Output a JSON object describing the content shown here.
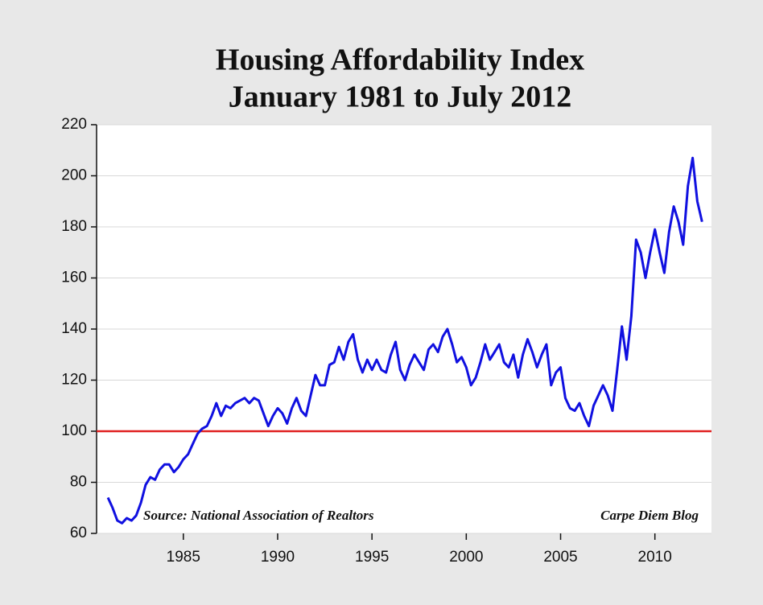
{
  "chart_data": {
    "type": "line",
    "title": "Housing Affordability Index",
    "subtitle": "January 1981 to July 2012",
    "annotations": [
      "Source: National Association of Realtors",
      "Carpe Diem Blog"
    ],
    "x": [
      1981.0,
      1981.25,
      1981.5,
      1981.75,
      1982.0,
      1982.25,
      1982.5,
      1982.75,
      1983.0,
      1983.25,
      1983.5,
      1983.75,
      1984.0,
      1984.25,
      1984.5,
      1984.75,
      1985.0,
      1985.25,
      1985.5,
      1985.75,
      1986.0,
      1986.25,
      1986.5,
      1986.75,
      1987.0,
      1987.25,
      1987.5,
      1987.75,
      1988.0,
      1988.25,
      1988.5,
      1988.75,
      1989.0,
      1989.25,
      1989.5,
      1989.75,
      1990.0,
      1990.25,
      1990.5,
      1990.75,
      1991.0,
      1991.25,
      1991.5,
      1991.75,
      1992.0,
      1992.25,
      1992.5,
      1992.75,
      1993.0,
      1993.25,
      1993.5,
      1993.75,
      1994.0,
      1994.25,
      1994.5,
      1994.75,
      1995.0,
      1995.25,
      1995.5,
      1995.75,
      1996.0,
      1996.25,
      1996.5,
      1996.75,
      1997.0,
      1997.25,
      1997.5,
      1997.75,
      1998.0,
      1998.25,
      1998.5,
      1998.75,
      1999.0,
      1999.25,
      1999.5,
      1999.75,
      2000.0,
      2000.25,
      2000.5,
      2000.75,
      2001.0,
      2001.25,
      2001.5,
      2001.75,
      2002.0,
      2002.25,
      2002.5,
      2002.75,
      2003.0,
      2003.25,
      2003.5,
      2003.75,
      2004.0,
      2004.25,
      2004.5,
      2004.75,
      2005.0,
      2005.25,
      2005.5,
      2005.75,
      2006.0,
      2006.25,
      2006.5,
      2006.75,
      2007.0,
      2007.25,
      2007.5,
      2007.75,
      2008.0,
      2008.25,
      2008.5,
      2008.75,
      2009.0,
      2009.25,
      2009.5,
      2009.75,
      2010.0,
      2010.25,
      2010.5,
      2010.75,
      2011.0,
      2011.25,
      2011.5,
      2011.75,
      2012.0,
      2012.25,
      2012.5
    ],
    "series": [
      {
        "color": "#1010e0",
        "values": [
          74,
          70,
          65,
          64,
          66,
          65,
          67,
          72,
          79,
          82,
          81,
          85,
          87,
          87,
          84,
          86,
          89,
          91,
          95,
          99,
          101,
          102,
          106,
          111,
          106,
          110,
          109,
          111,
          112,
          113,
          111,
          113,
          112,
          107,
          102,
          106,
          109,
          107,
          103,
          109,
          113,
          108,
          106,
          114,
          122,
          118,
          118,
          126,
          127,
          133,
          128,
          135,
          138,
          128,
          123,
          128,
          124,
          128,
          124,
          123,
          130,
          135,
          124,
          120,
          126,
          130,
          127,
          124,
          132,
          134,
          131,
          137,
          140,
          134,
          127,
          129,
          125,
          118,
          121,
          127,
          134,
          128,
          131,
          134,
          127,
          125,
          130,
          121,
          130,
          136,
          131,
          125,
          130,
          134,
          118,
          123,
          125,
          113,
          109,
          108,
          111,
          106,
          102,
          110,
          114,
          118,
          114,
          108,
          124,
          141,
          128,
          145,
          175,
          170,
          160,
          170,
          179,
          170,
          162,
          178,
          188,
          182,
          173,
          196,
          207,
          190,
          182
        ]
      }
    ],
    "reference_line": {
      "value": 100,
      "color": "#e02020"
    },
    "xlim": [
      1980.4,
      2013.0
    ],
    "xticks": [
      1985,
      1990,
      1995,
      2000,
      2005,
      2010
    ],
    "ylim": [
      60,
      220
    ],
    "yticks": [
      60,
      80,
      100,
      120,
      140,
      160,
      180,
      200,
      220
    ],
    "grid": true
  }
}
